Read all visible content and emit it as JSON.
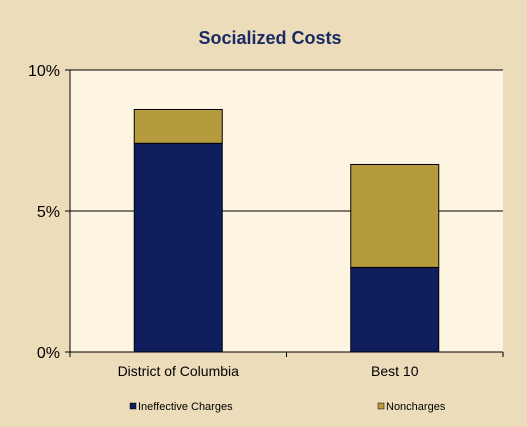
{
  "chart_data": {
    "type": "bar",
    "stacked": true,
    "title": "Socialized Costs",
    "categories": [
      "District of Columbia",
      "Best 10"
    ],
    "series": [
      {
        "name": "Ineffective Charges",
        "values": [
          7.4,
          3.0
        ],
        "color": "#0f1f5e"
      },
      {
        "name": "Noncharges",
        "values": [
          1.2,
          3.65
        ],
        "color": "#b59a3e"
      }
    ],
    "ylim": [
      0,
      10
    ],
    "yticks": [
      {
        "value": 0,
        "label": "0%"
      },
      {
        "value": 5,
        "label": "5%"
      },
      {
        "value": 10,
        "label": "10%"
      }
    ],
    "grid": true,
    "legend": "bottom",
    "colors": {
      "background": "#ecdcb9",
      "plot_area": "#fdf4e2",
      "title": "#1a2a66"
    }
  }
}
